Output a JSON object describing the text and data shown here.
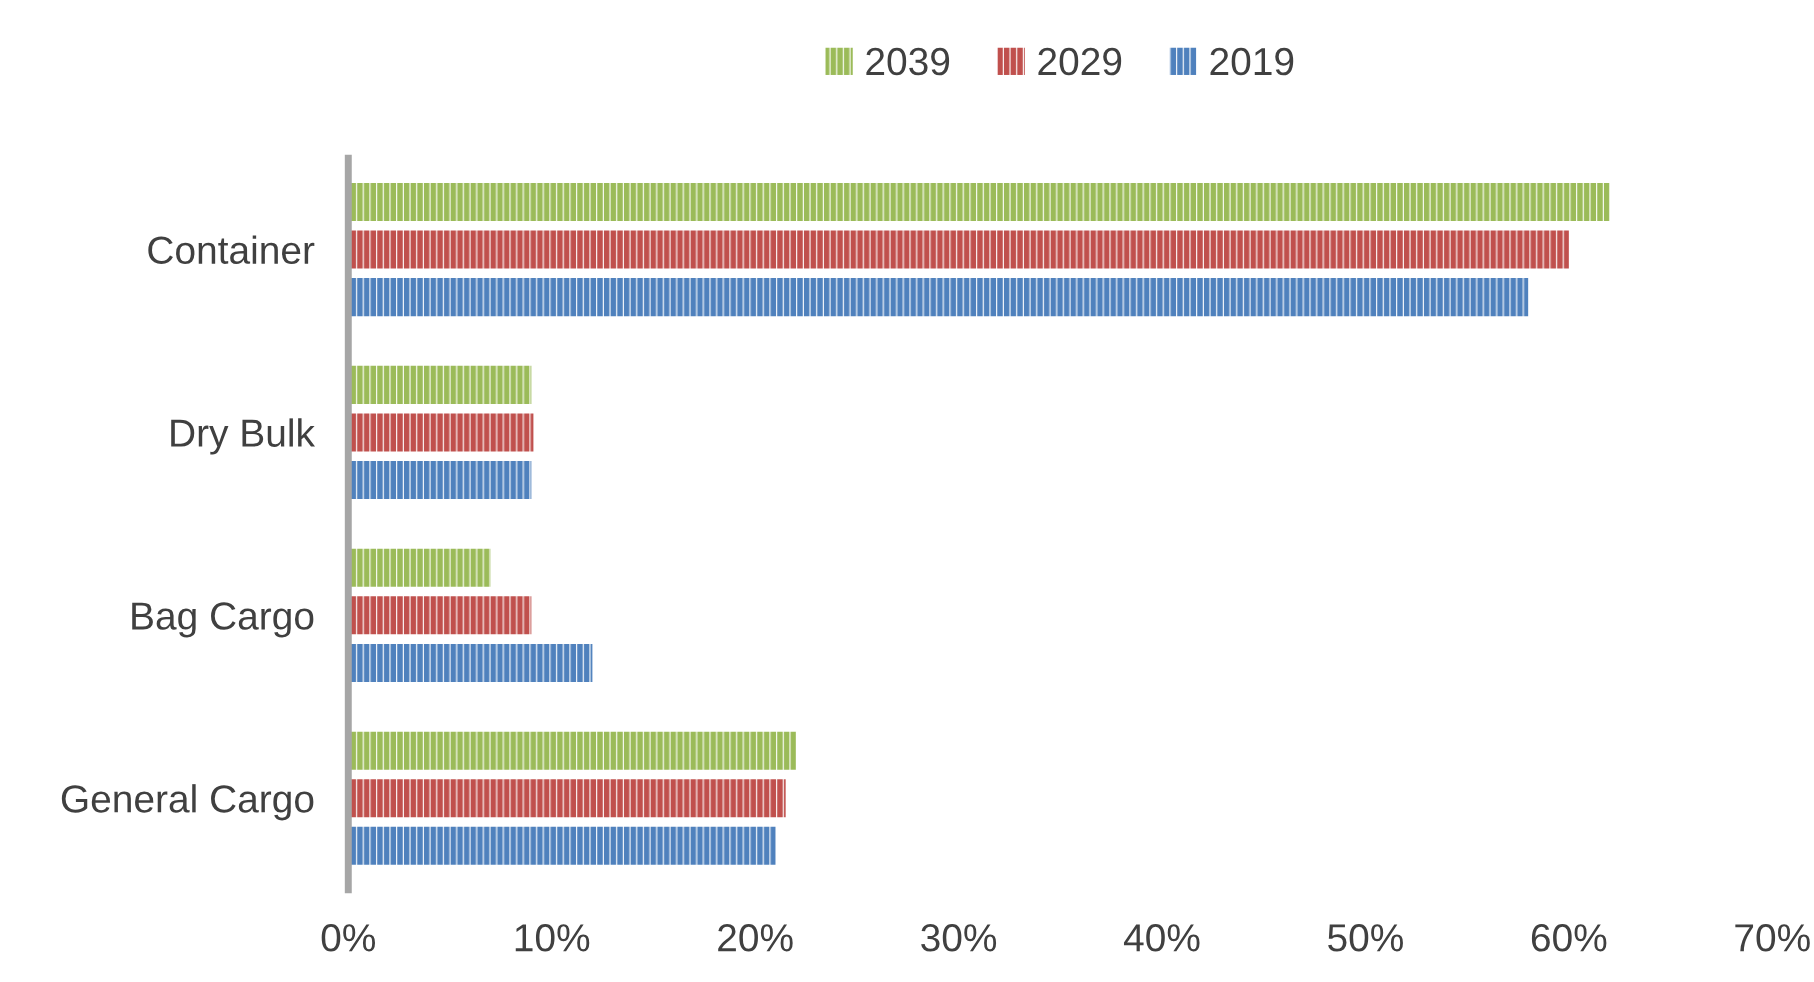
{
  "chart_data": {
    "type": "bar",
    "orientation": "horizontal",
    "categories": [
      "Container",
      "Dry Bulk",
      "Bag Cargo",
      "General Cargo"
    ],
    "series": [
      {
        "name": "2039",
        "color": "#9bbb59",
        "values": [
          62,
          9,
          7,
          22
        ]
      },
      {
        "name": "2029",
        "color": "#c0504d",
        "values": [
          60,
          9.1,
          9,
          21.5
        ]
      },
      {
        "name": "2019",
        "color": "#4f81bd",
        "values": [
          58,
          9,
          12,
          21
        ]
      }
    ],
    "xlim": [
      0,
      70
    ],
    "xticks": [
      {
        "value": 0,
        "label": "0%"
      },
      {
        "value": 10,
        "label": "10%"
      },
      {
        "value": 20,
        "label": "20%"
      },
      {
        "value": 30,
        "label": "30%"
      },
      {
        "value": 40,
        "label": "40%"
      },
      {
        "value": 50,
        "label": "50%"
      },
      {
        "value": 60,
        "label": "60%"
      },
      {
        "value": 70,
        "label": "70%"
      }
    ],
    "grid": false,
    "legend": "top"
  }
}
